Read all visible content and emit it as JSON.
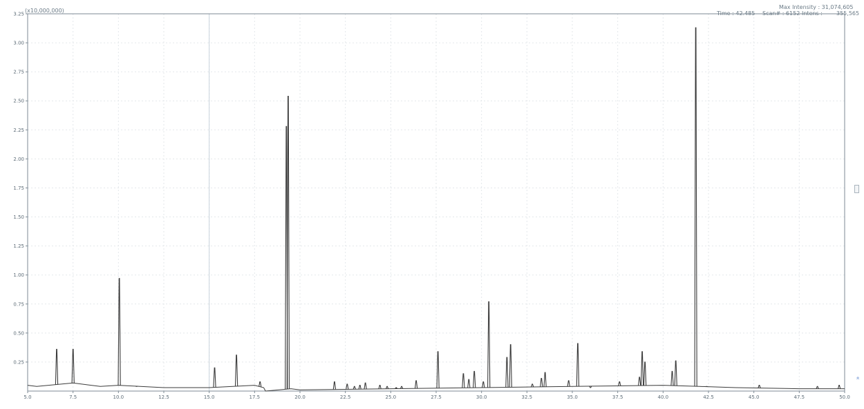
{
  "header": {
    "scale_label": "(x10,000,000)",
    "max_intensity_label": "Max Intensity : 31,074,605",
    "time_label": "Time : 42.485",
    "scan_label": "Scan# : 6152",
    "intensity_label": "Intens :",
    "intensity_value": "355,565"
  },
  "colors": {
    "trace": "#3a3a3a",
    "axis": "#7d8a94",
    "grid": "#e3e7ea",
    "cursor": "#c8d3dc",
    "tick_text": "#5c6b76",
    "accent": "#4a78c8"
  },
  "side": {
    "corner_glyph": "«"
  },
  "chart_data": {
    "type": "line",
    "title": "",
    "xlabel": "",
    "ylabel": "",
    "xlim": [
      5.0,
      50.0
    ],
    "ylim": [
      0.0,
      3.25
    ],
    "x_ticks": [
      "5.0",
      "7.5",
      "10.0",
      "12.5",
      "15.0",
      "17.5",
      "20.0",
      "22.5",
      "25.0",
      "27.5",
      "30.0",
      "32.5",
      "35.0",
      "37.5",
      "40.0",
      "42.5",
      "45.0",
      "47.5",
      "50.0"
    ],
    "y_ticks": [
      "0.25",
      "0.50",
      "0.75",
      "1.00",
      "1.25",
      "1.50",
      "1.75",
      "2.00",
      "2.25",
      "2.50",
      "2.75",
      "3.00",
      "3.25"
    ],
    "grid": true,
    "cursor_x": 15.0,
    "baseline": [
      [
        5.0,
        0.05
      ],
      [
        5.5,
        0.04
      ],
      [
        7.5,
        0.07
      ],
      [
        9.0,
        0.04
      ],
      [
        10.0,
        0.05
      ],
      [
        12.5,
        0.03
      ],
      [
        15.0,
        0.03
      ],
      [
        17.5,
        0.05
      ],
      [
        18.0,
        0.03
      ],
      [
        18.1,
        0.0
      ],
      [
        19.5,
        0.02
      ],
      [
        20.0,
        0.01
      ],
      [
        25.0,
        0.02
      ],
      [
        30.0,
        0.03
      ],
      [
        35.0,
        0.04
      ],
      [
        40.0,
        0.05
      ],
      [
        42.0,
        0.04
      ],
      [
        44.0,
        0.03
      ],
      [
        47.5,
        0.02
      ],
      [
        50.0,
        0.02
      ]
    ],
    "peaks": [
      {
        "rt": 6.6,
        "h": 0.36
      },
      {
        "rt": 7.5,
        "h": 0.36
      },
      {
        "rt": 10.05,
        "h": 0.97
      },
      {
        "rt": 11.0,
        "h": 0.04
      },
      {
        "rt": 15.3,
        "h": 0.2
      },
      {
        "rt": 16.5,
        "h": 0.31
      },
      {
        "rt": 17.8,
        "h": 0.08
      },
      {
        "rt": 19.25,
        "h": 2.28
      },
      {
        "rt": 19.35,
        "h": 2.54
      },
      {
        "rt": 21.9,
        "h": 0.08
      },
      {
        "rt": 22.6,
        "h": 0.06
      },
      {
        "rt": 23.0,
        "h": 0.04
      },
      {
        "rt": 23.3,
        "h": 0.05
      },
      {
        "rt": 23.6,
        "h": 0.07
      },
      {
        "rt": 24.4,
        "h": 0.05
      },
      {
        "rt": 24.8,
        "h": 0.04
      },
      {
        "rt": 25.3,
        "h": 0.03
      },
      {
        "rt": 25.6,
        "h": 0.04
      },
      {
        "rt": 26.4,
        "h": 0.09
      },
      {
        "rt": 27.6,
        "h": 0.34
      },
      {
        "rt": 29.0,
        "h": 0.15
      },
      {
        "rt": 29.3,
        "h": 0.1
      },
      {
        "rt": 29.6,
        "h": 0.17
      },
      {
        "rt": 30.1,
        "h": 0.08
      },
      {
        "rt": 30.4,
        "h": 0.77
      },
      {
        "rt": 31.4,
        "h": 0.29
      },
      {
        "rt": 31.6,
        "h": 0.4
      },
      {
        "rt": 32.8,
        "h": 0.06
      },
      {
        "rt": 33.3,
        "h": 0.11
      },
      {
        "rt": 33.5,
        "h": 0.16
      },
      {
        "rt": 34.8,
        "h": 0.09
      },
      {
        "rt": 35.3,
        "h": 0.41
      },
      {
        "rt": 36.0,
        "h": 0.03
      },
      {
        "rt": 37.6,
        "h": 0.08
      },
      {
        "rt": 38.7,
        "h": 0.12
      },
      {
        "rt": 38.85,
        "h": 0.34
      },
      {
        "rt": 39.0,
        "h": 0.25
      },
      {
        "rt": 40.5,
        "h": 0.17
      },
      {
        "rt": 40.7,
        "h": 0.26
      },
      {
        "rt": 41.8,
        "h": 3.13
      },
      {
        "rt": 42.4,
        "h": 0.04
      },
      {
        "rt": 45.3,
        "h": 0.05
      },
      {
        "rt": 48.5,
        "h": 0.04
      },
      {
        "rt": 49.7,
        "h": 0.05
      }
    ]
  }
}
